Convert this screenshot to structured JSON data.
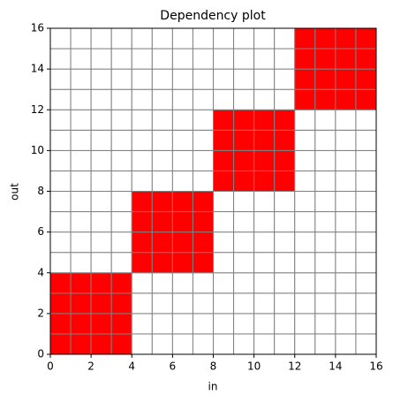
{
  "chart_data": {
    "type": "heatmap",
    "title": "Dependency plot",
    "xlabel": "in",
    "ylabel": "out",
    "color": "#ff0000",
    "grid_color": "#808080",
    "xlim": [
      0,
      16
    ],
    "ylim": [
      0,
      16
    ],
    "xticks": [
      0,
      2,
      4,
      6,
      8,
      10,
      12,
      14,
      16
    ],
    "yticks": [
      0,
      2,
      4,
      6,
      8,
      10,
      12,
      14,
      16
    ],
    "matrix": [
      [
        1,
        1,
        1,
        1,
        0,
        0,
        0,
        0,
        0,
        0,
        0,
        0,
        0,
        0,
        0,
        0
      ],
      [
        1,
        1,
        1,
        1,
        0,
        0,
        0,
        0,
        0,
        0,
        0,
        0,
        0,
        0,
        0,
        0
      ],
      [
        1,
        1,
        1,
        1,
        0,
        0,
        0,
        0,
        0,
        0,
        0,
        0,
        0,
        0,
        0,
        0
      ],
      [
        1,
        1,
        1,
        1,
        0,
        0,
        0,
        0,
        0,
        0,
        0,
        0,
        0,
        0,
        0,
        0
      ],
      [
        0,
        0,
        0,
        0,
        1,
        1,
        1,
        1,
        0,
        0,
        0,
        0,
        0,
        0,
        0,
        0
      ],
      [
        0,
        0,
        0,
        0,
        1,
        1,
        1,
        1,
        0,
        0,
        0,
        0,
        0,
        0,
        0,
        0
      ],
      [
        0,
        0,
        0,
        0,
        1,
        1,
        1,
        1,
        0,
        0,
        0,
        0,
        0,
        0,
        0,
        0
      ],
      [
        0,
        0,
        0,
        0,
        1,
        1,
        1,
        1,
        0,
        0,
        0,
        0,
        0,
        0,
        0,
        0
      ],
      [
        0,
        0,
        0,
        0,
        0,
        0,
        0,
        0,
        1,
        1,
        1,
        1,
        0,
        0,
        0,
        0
      ],
      [
        0,
        0,
        0,
        0,
        0,
        0,
        0,
        0,
        1,
        1,
        1,
        1,
        0,
        0,
        0,
        0
      ],
      [
        0,
        0,
        0,
        0,
        0,
        0,
        0,
        0,
        1,
        1,
        1,
        1,
        0,
        0,
        0,
        0
      ],
      [
        0,
        0,
        0,
        0,
        0,
        0,
        0,
        0,
        1,
        1,
        1,
        1,
        0,
        0,
        0,
        0
      ],
      [
        0,
        0,
        0,
        0,
        0,
        0,
        0,
        0,
        0,
        0,
        0,
        0,
        1,
        1,
        1,
        1
      ],
      [
        0,
        0,
        0,
        0,
        0,
        0,
        0,
        0,
        0,
        0,
        0,
        0,
        1,
        1,
        1,
        1
      ],
      [
        0,
        0,
        0,
        0,
        0,
        0,
        0,
        0,
        0,
        0,
        0,
        0,
        1,
        1,
        1,
        1
      ],
      [
        0,
        0,
        0,
        0,
        0,
        0,
        0,
        0,
        0,
        0,
        0,
        0,
        1,
        1,
        1,
        1
      ]
    ]
  }
}
